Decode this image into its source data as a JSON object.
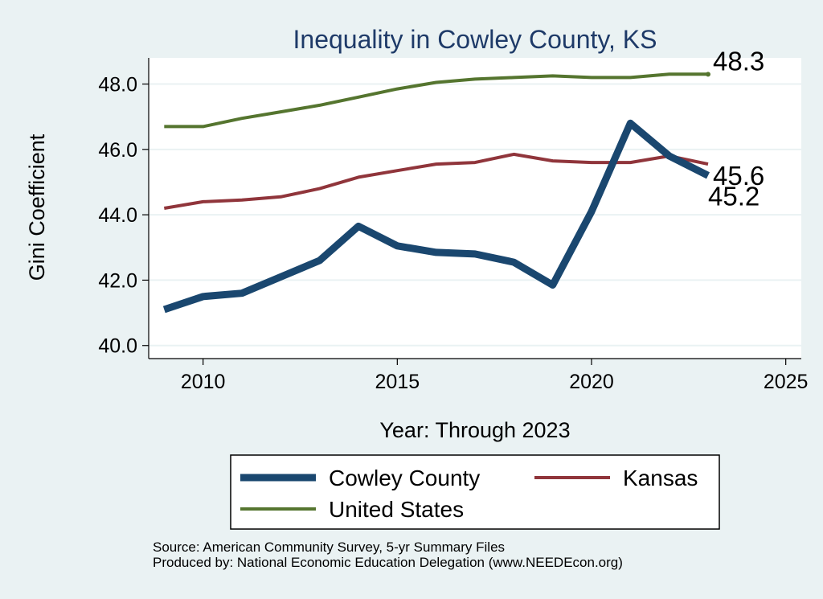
{
  "chart_data": {
    "type": "line",
    "title": "Inequality in Cowley County, KS",
    "xlabel": "Year: Through 2023",
    "ylabel": "Gini Coefficient",
    "xlim": [
      2008.6,
      2025.4
    ],
    "ylim": [
      39.6,
      48.8
    ],
    "x_ticks": [
      2010,
      2015,
      2020,
      2025
    ],
    "y_ticks": [
      40.0,
      42.0,
      44.0,
      46.0,
      48.0
    ],
    "y_tick_labels": [
      "40.0",
      "42.0",
      "44.0",
      "46.0",
      "48.0"
    ],
    "grid": true,
    "x": [
      2009,
      2010,
      2011,
      2012,
      2013,
      2014,
      2015,
      2016,
      2017,
      2018,
      2019,
      2020,
      2021,
      2022,
      2023
    ],
    "series": [
      {
        "name": "Cowley County",
        "color": "#1a476f",
        "weight": "thick",
        "values": [
          41.1,
          41.5,
          41.6,
          42.1,
          42.6,
          43.65,
          43.05,
          42.85,
          42.8,
          42.55,
          41.85,
          44.1,
          46.8,
          45.8,
          45.2
        ],
        "end_label": "45.2"
      },
      {
        "name": "Kansas",
        "color": "#90353b",
        "weight": "medium",
        "values": [
          44.2,
          44.4,
          44.45,
          44.55,
          44.8,
          45.15,
          45.35,
          45.55,
          45.6,
          45.85,
          45.65,
          45.6,
          45.6,
          45.8,
          45.55
        ],
        "end_label": "45.6"
      },
      {
        "name": "United States",
        "color": "#55752f",
        "weight": "medium",
        "values": [
          46.7,
          46.7,
          46.95,
          47.15,
          47.35,
          47.6,
          47.85,
          48.05,
          48.15,
          48.2,
          48.25,
          48.2,
          48.2,
          48.3,
          48.3
        ],
        "end_label": "48.3"
      }
    ],
    "legend": {
      "position": "bottom",
      "entries": [
        "Cowley County",
        "Kansas",
        "United States"
      ]
    }
  },
  "footer": {
    "source": "Source: American Community Survey, 5-yr Summary Files",
    "produced": "Produced by: National Economic Education Delegation (www.NEEDEcon.org)"
  }
}
